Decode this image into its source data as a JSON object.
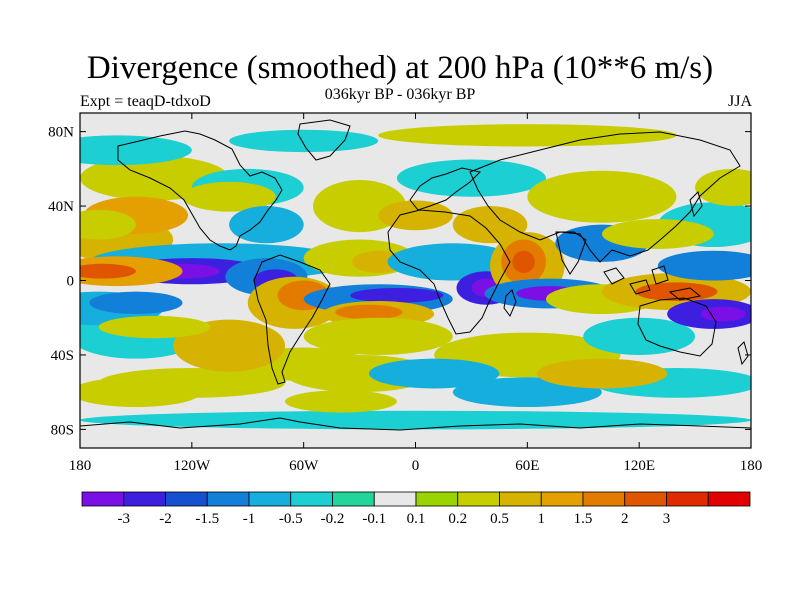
{
  "header": {
    "title": "Divergence (smoothed) at 200 hPa (10**6 m/s)",
    "subtitle": "036kyr BP - 036kyr BP",
    "experiment": "Expt = teaqD-tdxoD",
    "season": "JJA"
  },
  "map": {
    "lon_range": [
      -180,
      180
    ],
    "lat_range": [
      -90,
      90
    ],
    "lat_ticks": [
      {
        "value": 80,
        "label": "80N"
      },
      {
        "value": 40,
        "label": "40N"
      },
      {
        "value": 0,
        "label": "0"
      },
      {
        "value": -40,
        "label": "40S"
      },
      {
        "value": -80,
        "label": "80S"
      }
    ],
    "lon_ticks": [
      {
        "value": -180,
        "label": "180"
      },
      {
        "value": -120,
        "label": "120W"
      },
      {
        "value": -60,
        "label": "60W"
      },
      {
        "value": 0,
        "label": "0"
      },
      {
        "value": 60,
        "label": "60E"
      },
      {
        "value": 120,
        "label": "120E"
      },
      {
        "value": 180,
        "label": "180"
      }
    ]
  },
  "colorbar": {
    "colors": [
      "#7b10e6",
      "#3d1fe0",
      "#1450d0",
      "#127fd8",
      "#16aedc",
      "#1ccfd2",
      "#22d59b",
      "#e8e8e8",
      "#9ad400",
      "#c8cd00",
      "#d6b300",
      "#e3a000",
      "#e37b00",
      "#df5500",
      "#e02a00",
      "#e20000"
    ],
    "labels": [
      "-3",
      "-2",
      "-1.5",
      "-1",
      "-0.5",
      "-0.2",
      "-0.1",
      "0.1",
      "0.2",
      "0.5",
      "1",
      "1.5",
      "2",
      "3"
    ]
  },
  "chart_data": {
    "type": "map_contour_fill",
    "title": "Divergence (smoothed) at 200 hPa (10**6 m/s)",
    "subtitle": "036kyr BP - 036kyr BP",
    "levels": [
      -3,
      -2,
      -1.5,
      -1,
      -0.5,
      -0.2,
      -0.1,
      0.1,
      0.2,
      0.5,
      1,
      1.5,
      2,
      3
    ],
    "features": [
      {
        "name": "equatorial-pacific-max",
        "lon": -155,
        "lat": 6,
        "value": 3
      },
      {
        "name": "central-pacific-min",
        "lon": -118,
        "lat": 6,
        "value": -3
      },
      {
        "name": "south-america-min",
        "lon": -78,
        "lat": 2,
        "value": -2
      },
      {
        "name": "amazon-max",
        "lon": -60,
        "lat": -8,
        "value": 2
      },
      {
        "name": "south-atlantic-max",
        "lon": -20,
        "lat": -17,
        "value": 2
      },
      {
        "name": "atlantic-min",
        "lon": -10,
        "lat": -8,
        "value": -2
      },
      {
        "name": "africa-min",
        "lon": 38,
        "lat": -4,
        "value": -3
      },
      {
        "name": "arabian-sea-max",
        "lon": 58,
        "lat": 10,
        "value": 3
      },
      {
        "name": "indian-ocean-min",
        "lon": 72,
        "lat": -7,
        "value": -3
      },
      {
        "name": "west-pacific-max",
        "lon": 140,
        "lat": -6,
        "value": 3
      },
      {
        "name": "north-pacific-max",
        "lon": -150,
        "lat": 40,
        "value": 1.5
      },
      {
        "name": "southwest-pacific-min",
        "lon": 160,
        "lat": -15,
        "value": -3
      }
    ]
  }
}
